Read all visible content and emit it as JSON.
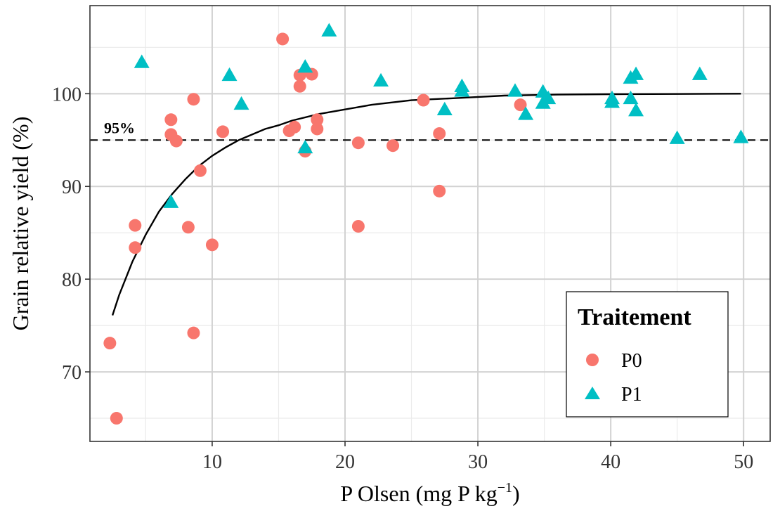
{
  "chart_data": {
    "type": "scatter",
    "xlabel": "P Olsen (mg P kg",
    "xlabel_exponent": "−1",
    "xlabel_suffix": ")",
    "ylabel": "Grain relative yield (%)",
    "xlim": [
      0.8,
      52
    ],
    "ylim": [
      62.5,
      109.5
    ],
    "x_ticks": [
      10,
      20,
      30,
      40,
      50
    ],
    "y_ticks": [
      70,
      80,
      90,
      100
    ],
    "grid": true,
    "threshold": {
      "y": 95,
      "label": "95%",
      "style": "dashed"
    },
    "fit_curve": {
      "x": [
        2.5,
        3,
        4,
        5,
        6,
        7,
        8,
        9,
        10,
        11,
        12,
        13,
        14,
        15,
        16,
        18,
        20,
        22,
        25,
        28,
        32,
        36,
        40,
        45,
        49.8
      ],
      "y": [
        76.1,
        78.3,
        81.9,
        84.8,
        87.3,
        89.2,
        90.8,
        92.2,
        93.3,
        94.2,
        95.0,
        95.6,
        96.2,
        96.6,
        97.1,
        97.8,
        98.3,
        98.8,
        99.3,
        99.5,
        99.8,
        99.9,
        99.95,
        99.97,
        100.0
      ]
    },
    "legend": {
      "title": "Traitement",
      "position": "bottom-right"
    },
    "series": [
      {
        "name": "P0",
        "color": "#F8766D",
        "marker": "circle",
        "points": [
          [
            2.3,
            73.1
          ],
          [
            2.8,
            65.0
          ],
          [
            4.2,
            85.8
          ],
          [
            4.2,
            83.4
          ],
          [
            6.9,
            97.2
          ],
          [
            6.9,
            95.6
          ],
          [
            7.3,
            94.9
          ],
          [
            8.2,
            85.6
          ],
          [
            8.6,
            99.4
          ],
          [
            8.6,
            74.2
          ],
          [
            9.1,
            91.7
          ],
          [
            10.0,
            83.7
          ],
          [
            10.8,
            95.9
          ],
          [
            15.3,
            105.9
          ],
          [
            15.8,
            96.0
          ],
          [
            16.2,
            96.4
          ],
          [
            16.6,
            102.0
          ],
          [
            16.6,
            100.8
          ],
          [
            17.0,
            93.8
          ],
          [
            17.5,
            102.1
          ],
          [
            17.9,
            97.2
          ],
          [
            17.9,
            96.2
          ],
          [
            21.0,
            94.7
          ],
          [
            21.0,
            85.7
          ],
          [
            23.6,
            94.4
          ],
          [
            25.9,
            99.3
          ],
          [
            27.1,
            95.7
          ],
          [
            27.1,
            89.5
          ],
          [
            33.2,
            98.8
          ]
        ]
      },
      {
        "name": "P1",
        "color": "#00BFC4",
        "marker": "triangle",
        "points": [
          [
            4.7,
            103.4
          ],
          [
            6.9,
            88.3
          ],
          [
            11.3,
            102.0
          ],
          [
            12.2,
            98.9
          ],
          [
            17.0,
            102.9
          ],
          [
            17.0,
            94.2
          ],
          [
            18.8,
            106.8
          ],
          [
            22.7,
            101.4
          ],
          [
            27.5,
            98.3
          ],
          [
            28.8,
            100.8
          ],
          [
            28.8,
            100.3
          ],
          [
            32.8,
            100.3
          ],
          [
            33.6,
            97.8
          ],
          [
            34.9,
            100.2
          ],
          [
            34.9,
            99.0
          ],
          [
            35.3,
            99.5
          ],
          [
            40.1,
            99.5
          ],
          [
            40.1,
            99.1
          ],
          [
            41.5,
            101.7
          ],
          [
            41.5,
            99.5
          ],
          [
            41.9,
            102.1
          ],
          [
            41.9,
            98.2
          ],
          [
            45.0,
            95.2
          ],
          [
            46.7,
            102.1
          ],
          [
            49.8,
            95.3
          ]
        ]
      }
    ]
  }
}
